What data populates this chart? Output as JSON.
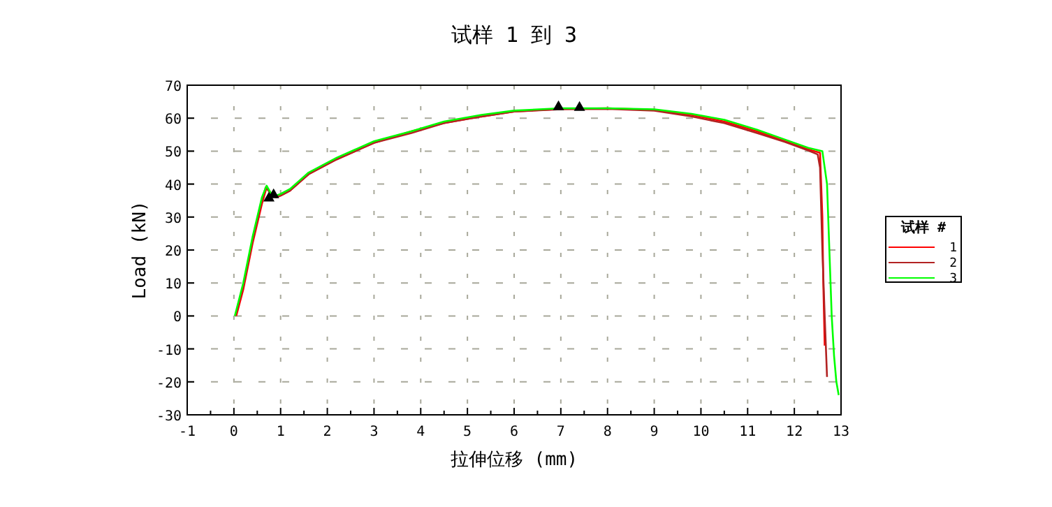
{
  "chart_data": {
    "type": "line",
    "title": "试样 1 到 3",
    "xlabel": "拉伸位移 (mm)",
    "ylabel": "Load (kN)",
    "legend_title": "试样 #",
    "xlim": [
      -1,
      13
    ],
    "xticks": [
      -1,
      0,
      1,
      2,
      3,
      4,
      5,
      6,
      7,
      8,
      9,
      10,
      11,
      12,
      13
    ],
    "ylim": [
      -30,
      70
    ],
    "yticks": [
      -30,
      -20,
      -10,
      0,
      10,
      20,
      30,
      40,
      50,
      60,
      70
    ],
    "grid": true,
    "legend": "right",
    "line_style": "solid",
    "series": [
      {
        "name": "1",
        "color": "#ff0000",
        "x": [
          0.05,
          0.2,
          0.4,
          0.6,
          0.7,
          0.8,
          0.9,
          1.0,
          1.2,
          1.6,
          2.2,
          3.0,
          3.8,
          4.5,
          5.3,
          6.0,
          7.0,
          8.0,
          9.0,
          9.8,
          10.5,
          11.2,
          11.8,
          12.3,
          12.55,
          12.6,
          12.62,
          12.65
        ],
        "values": [
          0,
          8,
          22,
          34,
          39,
          37,
          36,
          36.5,
          38,
          43,
          47.5,
          52.5,
          56,
          58.5,
          60.5,
          62,
          62.8,
          63,
          62.5,
          61,
          59,
          56,
          53,
          50.5,
          49.5,
          30,
          10,
          -9
        ]
      },
      {
        "name": "2",
        "color": "#b22222",
        "x": [
          0.03,
          0.2,
          0.4,
          0.6,
          0.68,
          0.8,
          0.9,
          1.0,
          1.2,
          1.6,
          2.2,
          3.0,
          3.8,
          4.5,
          5.3,
          6.0,
          7.0,
          8.0,
          9.0,
          9.8,
          10.5,
          11.2,
          11.8,
          12.3,
          12.5,
          12.55,
          12.6,
          12.65,
          12.7
        ],
        "values": [
          0,
          9,
          23,
          35,
          39,
          37,
          36,
          36.5,
          38,
          43,
          47.5,
          52.5,
          55.5,
          58.5,
          60.5,
          62,
          62.7,
          62.8,
          62.3,
          60.5,
          58.5,
          55.5,
          52.8,
          50.2,
          49,
          45,
          20,
          0,
          -18.5
        ]
      },
      {
        "name": "3",
        "color": "#00ff00",
        "x": [
          0.02,
          0.2,
          0.4,
          0.6,
          0.7,
          0.8,
          0.9,
          1.0,
          1.2,
          1.6,
          2.2,
          3.0,
          3.8,
          4.5,
          5.3,
          6.0,
          7.0,
          8.0,
          9.0,
          9.8,
          10.5,
          11.2,
          11.8,
          12.3,
          12.6,
          12.7,
          12.75,
          12.8,
          12.85,
          12.9,
          12.95
        ],
        "values": [
          0,
          10,
          24,
          36,
          39.5,
          37,
          36.5,
          37,
          38.5,
          43.5,
          48,
          53,
          56,
          59,
          61,
          62.3,
          63,
          63,
          62.7,
          61.3,
          59.5,
          56.5,
          53.5,
          51,
          50,
          40,
          20,
          0,
          -12,
          -20,
          -24
        ]
      },
      {
        "type": "scatter",
        "color": "#000000",
        "marker": "triangle",
        "x": [
          0.75,
          0.85,
          6.95,
          7.4
        ],
        "values": [
          36,
          37,
          63.7,
          63.5
        ]
      }
    ]
  }
}
